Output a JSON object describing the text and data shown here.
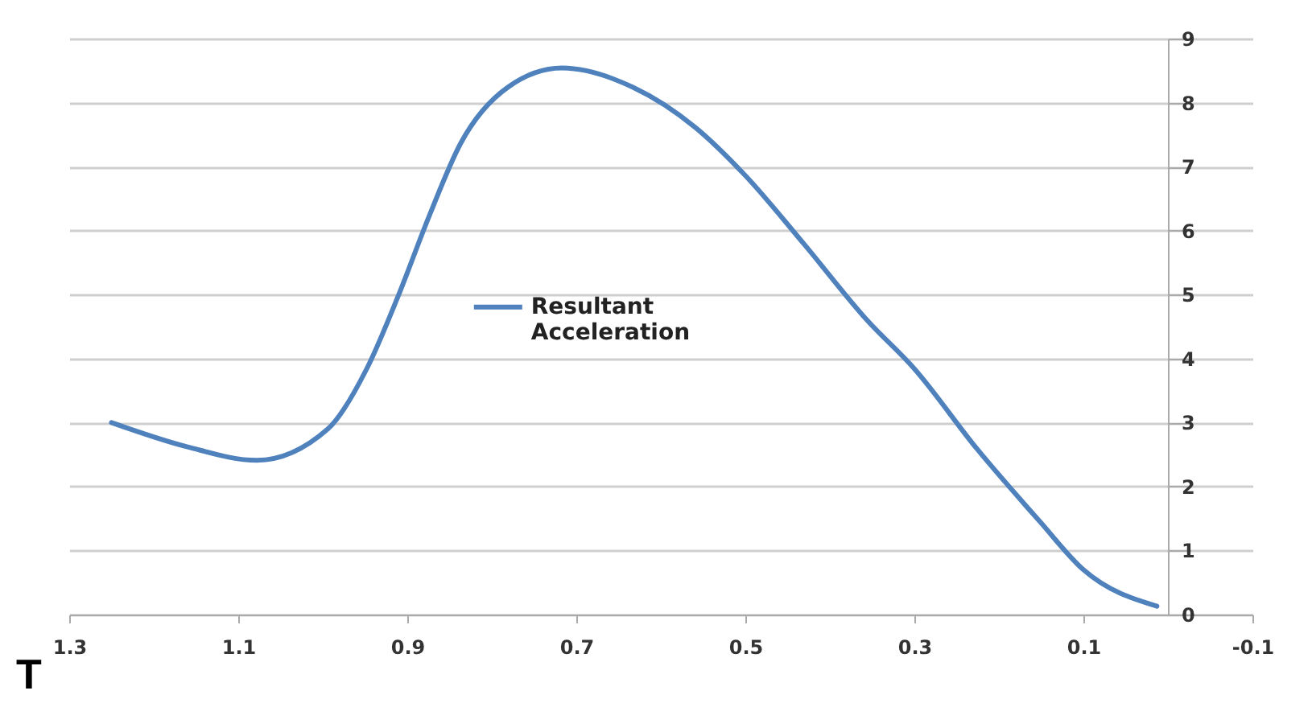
{
  "chart_data": {
    "type": "line",
    "x": [
      1.25,
      1.16,
      1.078,
      0.994,
      0.948,
      0.911,
      0.874,
      0.837,
      0.781,
      0.717,
      0.633,
      0.559,
      0.5,
      0.43,
      0.356,
      0.3,
      0.226,
      0.152,
      0.1,
      0.013
    ],
    "series": [
      {
        "name": "Resultant Acceleration",
        "color": "#4f81bd",
        "values": [
          3.0,
          2.62,
          2.41,
          2.9,
          3.84,
          4.97,
          6.23,
          7.36,
          8.24,
          8.54,
          8.24,
          7.61,
          6.86,
          5.78,
          4.6,
          3.84,
          2.59,
          1.46,
          0.7,
          0.13
        ]
      }
    ],
    "xlim": [
      1.3,
      -0.1
    ],
    "xticks": [
      1.3,
      1.1,
      0.9,
      0.7,
      0.5,
      0.3,
      0.1,
      -0.1
    ],
    "ylim": [
      0,
      9
    ],
    "yticks": [
      0,
      1,
      2,
      3,
      4,
      5,
      6,
      7,
      8,
      9
    ],
    "grid": "y",
    "legend": "left",
    "marker": "none",
    "line_style": "solid",
    "annotations": [
      "T"
    ]
  }
}
